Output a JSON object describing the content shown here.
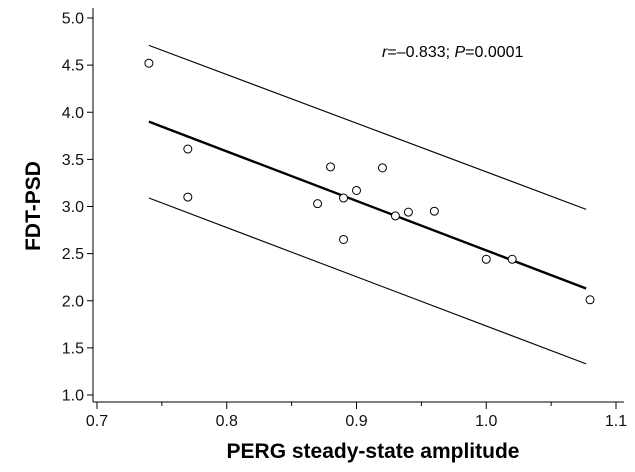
{
  "chart_data": {
    "type": "scatter",
    "title": "",
    "xlabel": "PERG steady-state amplitude",
    "ylabel": "FDT-PSD",
    "xlim": [
      0.7,
      1.1
    ],
    "ylim": [
      0.95,
      5.1
    ],
    "x_ticks": [
      "0.7",
      "0.8",
      "0.9",
      "1.0",
      "1.1"
    ],
    "y_ticks": [
      "1.0",
      "1.5",
      "2.0",
      "2.5",
      "3.0",
      "3.5",
      "4.0",
      "4.5",
      "5.0"
    ],
    "grid": false,
    "annotation": {
      "r_symbol": "r",
      "r_text": "=–0.833; ",
      "p_symbol": "P",
      "p_text": "=0.0001"
    },
    "points": [
      {
        "x": 0.74,
        "y": 4.52
      },
      {
        "x": 0.77,
        "y": 3.61
      },
      {
        "x": 0.77,
        "y": 3.1
      },
      {
        "x": 0.87,
        "y": 3.03
      },
      {
        "x": 0.88,
        "y": 3.42
      },
      {
        "x": 0.89,
        "y": 3.09
      },
      {
        "x": 0.89,
        "y": 2.65
      },
      {
        "x": 0.9,
        "y": 3.17
      },
      {
        "x": 0.92,
        "y": 3.41
      },
      {
        "x": 0.93,
        "y": 2.9
      },
      {
        "x": 0.94,
        "y": 2.94
      },
      {
        "x": 0.96,
        "y": 2.95
      },
      {
        "x": 1.0,
        "y": 2.44
      },
      {
        "x": 1.02,
        "y": 2.44
      },
      {
        "x": 1.08,
        "y": 2.01
      }
    ],
    "regression_line": {
      "x": [
        0.74,
        1.077
      ],
      "y": [
        3.9,
        2.13
      ]
    },
    "upper_band": {
      "x": [
        0.74,
        1.077
      ],
      "y": [
        4.71,
        2.97
      ]
    },
    "lower_band": {
      "x": [
        0.74,
        1.077
      ],
      "y": [
        3.09,
        1.33
      ]
    }
  }
}
